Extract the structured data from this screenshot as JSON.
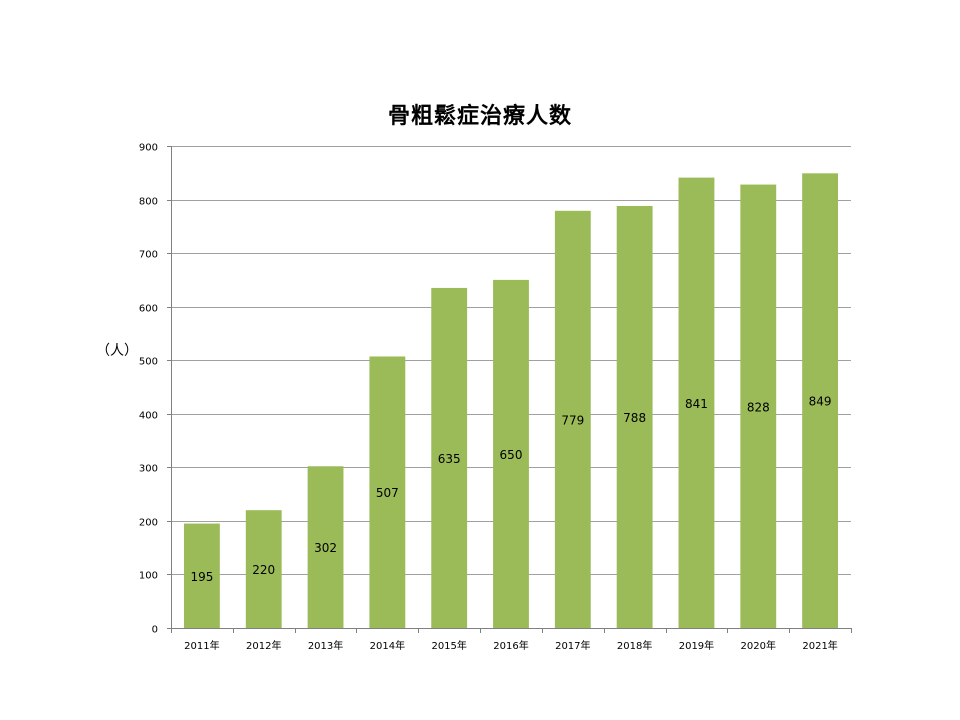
{
  "chart_data": {
    "type": "bar",
    "title": "骨粗鬆症治療人数",
    "y_unit": "（人）",
    "xlabel": "",
    "ylabel": "",
    "ylim": [
      0,
      900
    ],
    "yticks": [
      0,
      100,
      200,
      300,
      400,
      500,
      600,
      700,
      800,
      900
    ],
    "ytick_labels": [
      "0",
      "100",
      "200",
      "300",
      "400",
      "500",
      "600",
      "700",
      "800",
      "900"
    ],
    "categories": [
      "2011年",
      "2012年",
      "2013年",
      "2014年",
      "2015年",
      "2016年",
      "2017年",
      "2018年",
      "2019年",
      "2020年",
      "2021年"
    ],
    "values": [
      195,
      220,
      302,
      507,
      635,
      650,
      779,
      788,
      841,
      828,
      849
    ],
    "data_labels": [
      "195",
      "220",
      "302",
      "507",
      "635",
      "650",
      "779",
      "788",
      "841",
      "828",
      "849"
    ],
    "grid": true,
    "legend": "none",
    "bar_color": "#9bbb59",
    "grid_color": "#a0a0a0",
    "axis_color": "#808080"
  }
}
